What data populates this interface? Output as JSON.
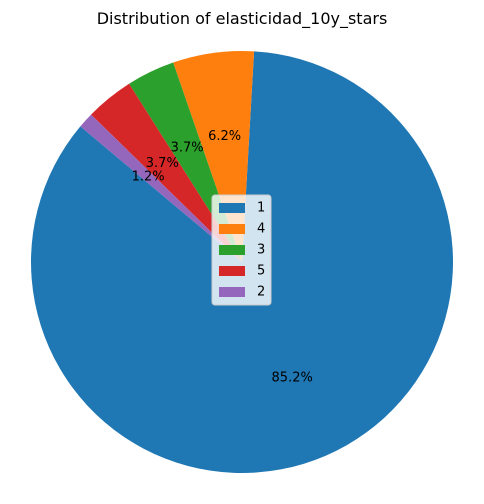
{
  "chart_data": {
    "type": "pie",
    "title": "Distribution of elasticidad_10y_stars",
    "categories": [
      "1",
      "4",
      "3",
      "5",
      "2"
    ],
    "values": [
      85.2,
      6.2,
      3.7,
      3.7,
      1.2
    ],
    "labels": [
      "85.2%",
      "6.2%",
      "3.7%",
      "3.7%",
      "1.2%"
    ],
    "colors": [
      "#1f77b4",
      "#ff7f0e",
      "#2ca02c",
      "#d62728",
      "#9467bd"
    ],
    "legend": {
      "placement": "center",
      "entries": [
        "1",
        "4",
        "3",
        "5",
        "2"
      ]
    },
    "start_angle": 140,
    "direction": "counterclockwise"
  }
}
